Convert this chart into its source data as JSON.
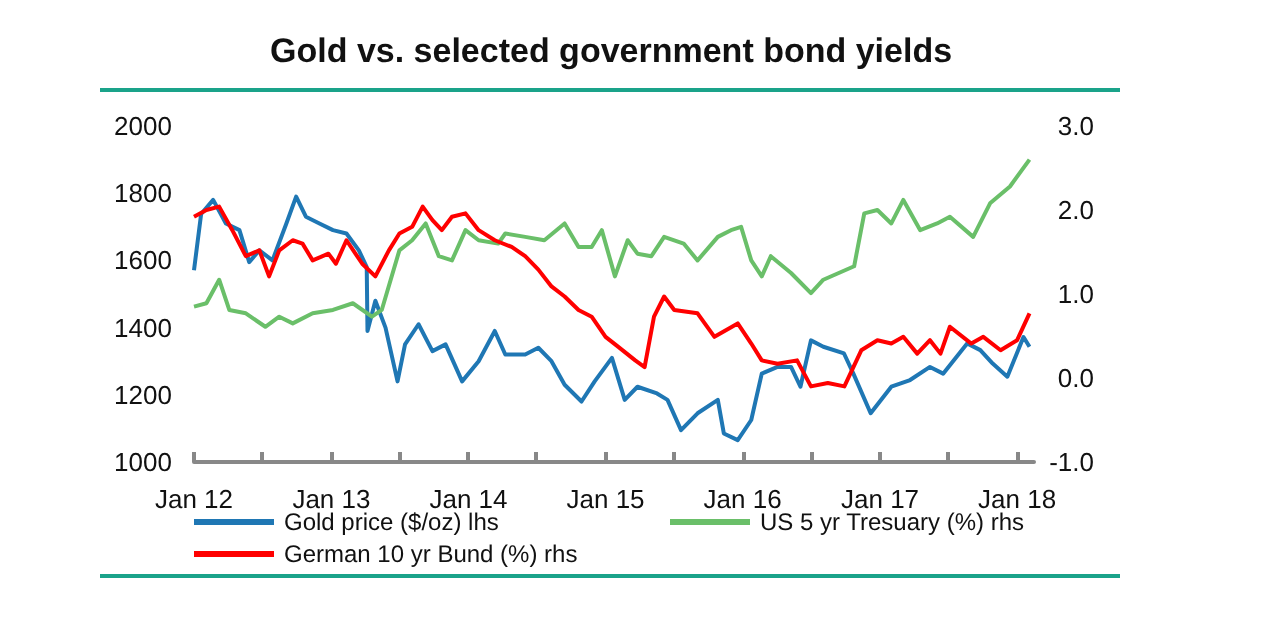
{
  "chart_data": {
    "type": "line",
    "title": "Gold vs. selected government bond yields",
    "xlim": [
      "2012-01-01",
      "2018-02-15"
    ],
    "xticks": [
      {
        "value": "2012-01-01",
        "label": "Jan 12"
      },
      {
        "value": "2012-07-01",
        "label": null
      },
      {
        "value": "2013-01-01",
        "label": "Jan 13"
      },
      {
        "value": "2013-07-01",
        "label": null
      },
      {
        "value": "2014-01-01",
        "label": "Jan 14"
      },
      {
        "value": "2014-07-01",
        "label": null
      },
      {
        "value": "2015-01-01",
        "label": "Jan 15"
      },
      {
        "value": "2015-07-01",
        "label": null
      },
      {
        "value": "2016-01-01",
        "label": "Jan 16"
      },
      {
        "value": "2016-07-01",
        "label": null
      },
      {
        "value": "2017-01-01",
        "label": "Jan 17"
      },
      {
        "value": "2017-07-01",
        "label": null
      },
      {
        "value": "2018-01-01",
        "label": "Jan 18"
      }
    ],
    "ylim": [
      1000,
      2000
    ],
    "yticks": [
      1000,
      1200,
      1400,
      1600,
      1800,
      2000
    ],
    "y2lim": [
      -1,
      3
    ],
    "y2ticks": [
      {
        "value": -1,
        "label": "-1.0"
      },
      {
        "value": 0,
        "label": "0.0"
      },
      {
        "value": 1,
        "label": "1.0"
      },
      {
        "value": 2,
        "label": "2.0"
      },
      {
        "value": 3,
        "label": "3.0"
      }
    ],
    "grid": false,
    "legend": "bottom",
    "marker": "none",
    "line_style": "solid",
    "series": [
      {
        "name": "Gold price ($/oz) lhs",
        "color": "#1f77b4",
        "x": [
          "2012-01-01",
          "2012-01-20",
          "2012-02-21",
          "2012-03-26",
          "2012-05-01",
          "2012-05-27",
          "2012-06-23",
          "2012-07-28",
          "2012-09-03",
          "2012-09-29",
          "2012-10-25",
          "2012-11-30",
          "2013-01-05",
          "2013-02-10",
          "2013-03-15",
          "2013-04-05",
          "2013-04-07",
          "2013-04-28",
          "2013-05-25",
          "2013-06-26",
          "2013-07-16",
          "2013-08-21",
          "2013-09-27",
          "2013-11-01",
          "2013-12-15",
          "2014-01-28",
          "2014-03-12",
          "2014-04-09",
          "2014-06-01",
          "2014-07-06",
          "2014-08-10",
          "2014-09-14",
          "2014-10-29",
          "2014-12-03",
          "2015-01-18",
          "2015-02-21",
          "2015-03-27",
          "2015-05-18",
          "2015-06-15",
          "2015-07-21",
          "2015-09-03",
          "2015-10-27",
          "2015-11-12",
          "2015-12-19",
          "2016-01-24",
          "2016-02-21",
          "2016-04-03",
          "2016-05-09",
          "2016-06-03",
          "2016-07-01",
          "2016-08-03",
          "2016-09-27",
          "2016-10-22",
          "2016-12-07",
          "2017-01-31",
          "2017-03-22",
          "2017-05-14",
          "2017-06-18",
          "2017-08-21",
          "2017-09-25",
          "2017-10-28",
          "2017-12-06",
          "2018-01-18",
          "2018-02-03"
        ],
        "values": [
          1571,
          1738,
          1780,
          1710,
          1690,
          1595,
          1630,
          1600,
          1710,
          1790,
          1730,
          1710,
          1690,
          1680,
          1630,
          1580,
          1390,
          1480,
          1400,
          1240,
          1350,
          1410,
          1330,
          1350,
          1240,
          1300,
          1390,
          1320,
          1320,
          1340,
          1300,
          1230,
          1180,
          1240,
          1310,
          1185,
          1224,
          1204,
          1185,
          1095,
          1145,
          1185,
          1085,
          1065,
          1125,
          1263,
          1283,
          1283,
          1224,
          1362,
          1343,
          1323,
          1263,
          1145,
          1224,
          1244,
          1283,
          1263,
          1353,
          1333,
          1293,
          1254,
          1372,
          1343
        ]
      },
      {
        "name": "US 5 yr Tresuary (%) rhs",
        "color": "#6abf69",
        "axis": "y2",
        "x": [
          "2012-01-01",
          "2012-02-03",
          "2012-03-08",
          "2012-04-04",
          "2012-05-18",
          "2012-07-09",
          "2012-08-15",
          "2012-09-20",
          "2012-11-12",
          "2013-01-05",
          "2013-02-27",
          "2013-04-19",
          "2013-05-15",
          "2013-07-01",
          "2013-08-04",
          "2013-09-09",
          "2013-10-14",
          "2013-11-18",
          "2013-12-24",
          "2014-01-28",
          "2014-03-21",
          "2014-04-09",
          "2014-06-01",
          "2014-07-22",
          "2014-09-14",
          "2014-10-21",
          "2014-11-25",
          "2014-12-22",
          "2015-01-26",
          "2015-03-01",
          "2015-03-27",
          "2015-05-03",
          "2015-06-06",
          "2015-07-28",
          "2015-09-03",
          "2015-10-27",
          "2015-12-01",
          "2015-12-28",
          "2016-01-24",
          "2016-02-21",
          "2016-03-16",
          "2016-05-09",
          "2016-07-01",
          "2016-08-03",
          "2016-10-24",
          "2016-11-20",
          "2016-12-25",
          "2017-01-31",
          "2017-03-04",
          "2017-04-18",
          "2017-06-02",
          "2017-07-06",
          "2017-09-06",
          "2017-10-21",
          "2017-12-13",
          "2018-02-03"
        ],
        "values": [
          0.85,
          0.89,
          1.17,
          0.81,
          0.77,
          0.61,
          0.73,
          0.65,
          0.77,
          0.81,
          0.89,
          0.73,
          0.81,
          1.52,
          1.64,
          1.84,
          1.45,
          1.4,
          1.76,
          1.64,
          1.6,
          1.72,
          1.68,
          1.64,
          1.84,
          1.56,
          1.56,
          1.76,
          1.21,
          1.64,
          1.48,
          1.45,
          1.68,
          1.6,
          1.4,
          1.68,
          1.76,
          1.8,
          1.4,
          1.21,
          1.45,
          1.25,
          1.01,
          1.17,
          1.33,
          1.96,
          2.0,
          1.84,
          2.12,
          1.76,
          1.84,
          1.92,
          1.68,
          2.08,
          2.28,
          2.6
        ]
      },
      {
        "name": "German 10 yr Bund (%) rhs",
        "color": "#ff0000",
        "axis": "y2",
        "x": [
          "2012-01-01",
          "2012-02-03",
          "2012-03-08",
          "2012-04-12",
          "2012-05-18",
          "2012-06-23",
          "2012-07-19",
          "2012-08-15",
          "2012-09-20",
          "2012-10-16",
          "2012-11-12",
          "2012-12-24",
          "2013-01-13",
          "2013-02-10",
          "2013-03-24",
          "2013-04-28",
          "2013-06-03",
          "2013-07-01",
          "2013-08-04",
          "2013-09-01",
          "2013-09-27",
          "2013-10-22",
          "2013-11-18",
          "2013-12-24",
          "2014-01-28",
          "2014-03-12",
          "2014-04-26",
          "2014-06-01",
          "2014-07-06",
          "2014-08-10",
          "2014-09-14",
          "2014-10-21",
          "2014-11-25",
          "2015-01-01",
          "2015-02-04",
          "2015-03-21",
          "2015-04-15",
          "2015-05-10",
          "2015-06-06",
          "2015-07-03",
          "2015-09-03",
          "2015-10-18",
          "2015-12-19",
          "2016-01-24",
          "2016-02-21",
          "2016-04-03",
          "2016-05-25",
          "2016-07-01",
          "2016-08-15",
          "2016-09-28",
          "2016-11-12",
          "2016-12-25",
          "2017-01-31",
          "2017-03-04",
          "2017-04-10",
          "2017-05-14",
          "2017-06-11",
          "2017-07-06",
          "2017-09-01",
          "2017-10-03",
          "2017-11-18",
          "2018-01-01",
          "2018-02-03"
        ],
        "values": [
          1.92,
          2.0,
          2.04,
          1.76,
          1.45,
          1.52,
          1.21,
          1.52,
          1.64,
          1.6,
          1.4,
          1.48,
          1.36,
          1.64,
          1.36,
          1.21,
          1.52,
          1.72,
          1.8,
          2.04,
          1.88,
          1.76,
          1.92,
          1.96,
          1.76,
          1.64,
          1.56,
          1.45,
          1.29,
          1.09,
          0.97,
          0.81,
          0.73,
          0.49,
          0.37,
          0.21,
          0.13,
          0.73,
          0.97,
          0.81,
          0.77,
          0.49,
          0.65,
          0.41,
          0.21,
          0.17,
          0.21,
          -0.1,
          -0.06,
          -0.1,
          0.33,
          0.45,
          0.41,
          0.49,
          0.29,
          0.45,
          0.29,
          0.61,
          0.41,
          0.49,
          0.33,
          0.45,
          0.77
        ]
      }
    ]
  }
}
